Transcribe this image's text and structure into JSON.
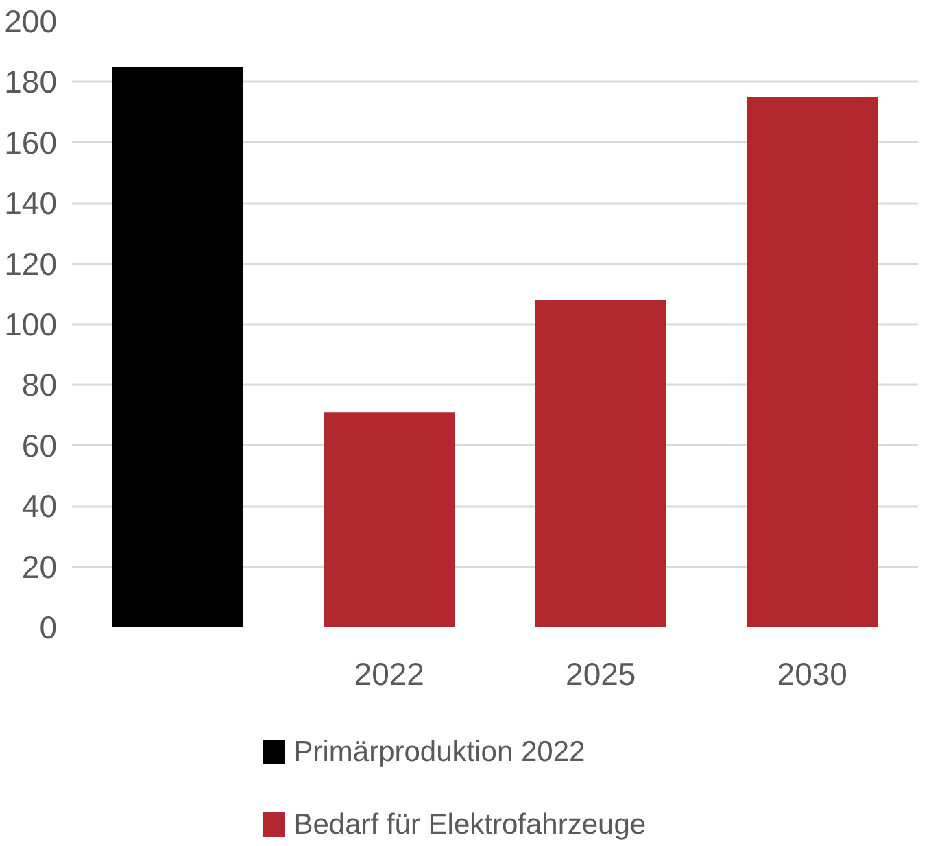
{
  "chart_data": {
    "type": "bar",
    "categories": [
      null,
      "2022",
      "2025",
      "2030"
    ],
    "series": [
      {
        "name": "Primärproduktion 2022",
        "color": "#000000",
        "values": [
          185,
          null,
          null,
          null
        ]
      },
      {
        "name": "Bedarf für Elektrofahrzeuge",
        "color": "#b2282e",
        "values": [
          null,
          71,
          108,
          175
        ]
      }
    ],
    "ylim": [
      0,
      200
    ],
    "yticks": [
      0,
      20,
      40,
      60,
      80,
      100,
      120,
      140,
      160,
      180,
      200
    ],
    "grid": "y",
    "legend": "bottom"
  }
}
